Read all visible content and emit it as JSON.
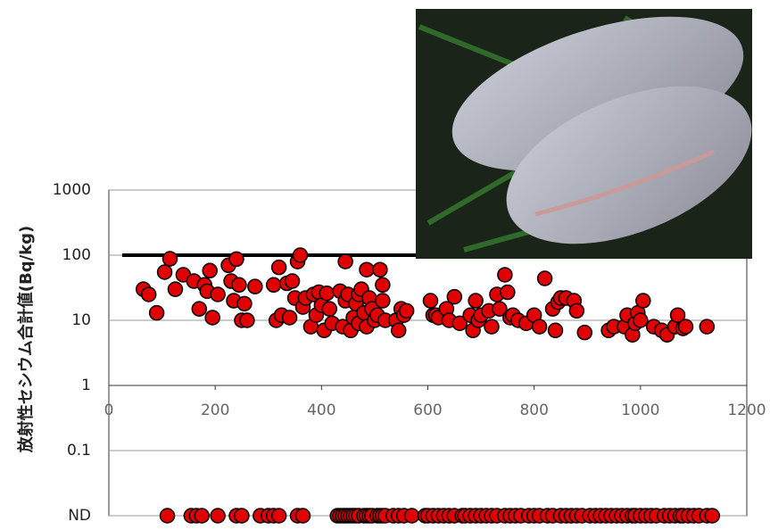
{
  "chart_data": {
    "type": "scatter",
    "y_label": "放射性セシウム合計値(Bq/kg)",
    "log_y": true,
    "xlim": [
      0,
      1200
    ],
    "xticks": [
      0,
      200,
      400,
      600,
      800,
      1000,
      1200
    ],
    "ylim": [
      0.01,
      1000
    ],
    "yticks": [
      1000,
      100,
      10,
      1,
      0.1,
      {
        "value": 0.01,
        "label": "ND"
      }
    ],
    "grid": true,
    "color": "#e00000",
    "reference_line": {
      "y": 100,
      "x": [
        25,
        1200
      ]
    },
    "x": [
      65,
      75,
      90,
      105,
      115,
      125,
      140,
      160,
      170,
      180,
      185,
      190,
      195,
      205,
      225,
      230,
      235,
      240,
      245,
      250,
      255,
      260,
      275,
      310,
      315,
      320,
      325,
      335,
      340,
      345,
      350,
      355,
      360,
      365,
      370,
      380,
      385,
      390,
      395,
      400,
      405,
      410,
      415,
      420,
      435,
      440,
      445,
      445,
      450,
      455,
      460,
      465,
      470,
      470,
      475,
      480,
      485,
      485,
      490,
      495,
      500,
      505,
      510,
      515,
      515,
      520,
      540,
      545,
      550,
      555,
      560,
      605,
      610,
      615,
      620,
      635,
      640,
      650,
      660,
      680,
      685,
      690,
      695,
      700,
      715,
      720,
      730,
      735,
      745,
      750,
      755,
      760,
      770,
      785,
      800,
      810,
      820,
      835,
      840,
      845,
      850,
      860,
      875,
      880,
      895,
      940,
      950,
      970,
      975,
      985,
      990,
      995,
      1000,
      1005,
      1025,
      1040,
      1050,
      1065,
      1070,
      1080,
      1085,
      1125
    ],
    "values": [
      30,
      25,
      13,
      55,
      88,
      30,
      50,
      40,
      15,
      35,
      28,
      58,
      11,
      25,
      70,
      40,
      20,
      87,
      35,
      10,
      18,
      10,
      33,
      35,
      10,
      65,
      12,
      37,
      11,
      40,
      22,
      80,
      100,
      16,
      22,
      8,
      25,
      12,
      27,
      17,
      7,
      26,
      15,
      9,
      28,
      8,
      20,
      80,
      25,
      7,
      11,
      18,
      9,
      25,
      30,
      13,
      8,
      60,
      22,
      15,
      10,
      12,
      60,
      20,
      35,
      10,
      10,
      7,
      15,
      12,
      14,
      20,
      12,
      12,
      11,
      15,
      10,
      23,
      9,
      12,
      7,
      20,
      10,
      12,
      14,
      8,
      25,
      15,
      50,
      27,
      11,
      12,
      10,
      9,
      12,
      8,
      44,
      15,
      7,
      19,
      22,
      22,
      20,
      14,
      6.5,
      7,
      8,
      8,
      12,
      6,
      9,
      13,
      10,
      20,
      8,
      7,
      6,
      8,
      12,
      7.5,
      8,
      8
    ],
    "nd_x": [
      110,
      155,
      165,
      175,
      205,
      240,
      250,
      285,
      300,
      310,
      320,
      355,
      365,
      430,
      435,
      440,
      445,
      450,
      455,
      460,
      465,
      470,
      480,
      485,
      490,
      495,
      505,
      510,
      515,
      520,
      535,
      545,
      555,
      570,
      595,
      600,
      610,
      620,
      630,
      640,
      650,
      665,
      670,
      680,
      690,
      700,
      710,
      720,
      730,
      745,
      755,
      765,
      775,
      790,
      800,
      810,
      825,
      835,
      850,
      860,
      870,
      880,
      890,
      905,
      915,
      925,
      935,
      945,
      955,
      965,
      975,
      985,
      990,
      1000,
      1010,
      1020,
      1030,
      1045,
      1055,
      1065,
      1075,
      1080,
      1090,
      1100,
      1110,
      1125,
      1135
    ]
  }
}
